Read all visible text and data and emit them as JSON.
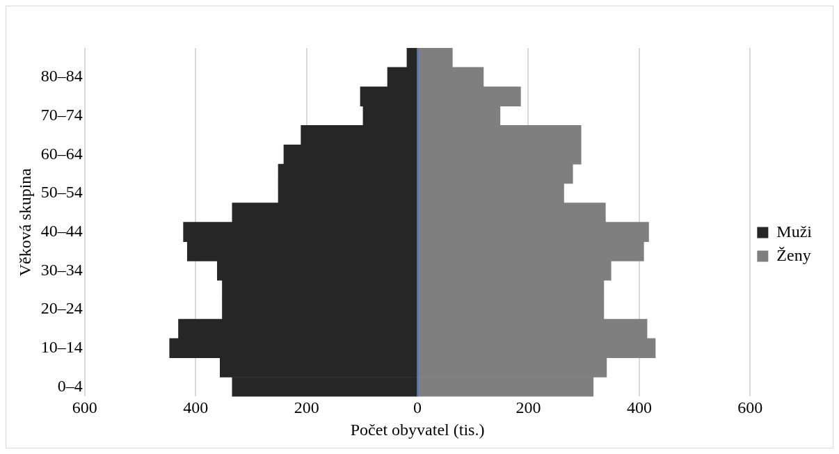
{
  "chart_data": {
    "type": "bar",
    "orientation": "horizontal",
    "stacked": true,
    "xlabel": "Počet obyvatel (tis.)",
    "ylabel": "Věková skupina",
    "categories": [
      null,
      "80–84",
      null,
      "70–74",
      null,
      "60–64",
      null,
      "50–54",
      null,
      "40–44",
      null,
      "30–34",
      null,
      "20–24",
      null,
      "10–14",
      null,
      "0–4"
    ],
    "series": [
      {
        "name": "Muži",
        "color": "#262626",
        "values": [
          -19,
          -54,
          -103,
          -98,
          -210,
          -241,
          -251,
          -251,
          -334,
          -422,
          -415,
          -361,
          -352,
          -352,
          -431,
          -447,
          -356,
          -334
        ]
      },
      {
        "name": "Ženy",
        "color": "#7f7f7f",
        "values": [
          63,
          119,
          186,
          149,
          295,
          295,
          280,
          264,
          339,
          417,
          408,
          349,
          336,
          336,
          414,
          429,
          341,
          317
        ]
      }
    ],
    "xlim": [
      -600,
      600
    ],
    "xticks": [
      {
        "value": -600,
        "label": "600"
      },
      {
        "value": -400,
        "label": "400"
      },
      {
        "value": -200,
        "label": "200"
      },
      0,
      200,
      400,
      600
    ],
    "ref_lines": [
      {
        "axis": "x",
        "value": 0,
        "color": "#4472c4"
      }
    ],
    "grid": "x",
    "legend": "right"
  }
}
